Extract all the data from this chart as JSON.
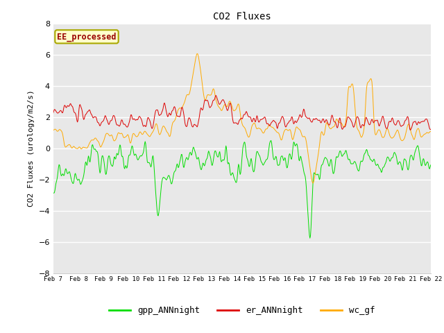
{
  "title": "CO2 Fluxes",
  "ylabel": "CO2 Fluxes (urology/m2/s)",
  "xlabel": "",
  "ylim": [
    -8,
    8
  ],
  "yticks": [
    -8,
    -6,
    -4,
    -2,
    0,
    2,
    4,
    6,
    8
  ],
  "bg_color": "#e8e8e8",
  "annotation": "EE_processed",
  "annotation_color": "#990000",
  "annotation_bg": "#ffffcc",
  "annotation_border": "#aaa800",
  "gpp_color": "#00dd00",
  "er_color": "#dd0000",
  "wc_color": "#ffaa00",
  "legend_labels": [
    "gpp_ANNnight",
    "er_ANNnight",
    "wc_gf"
  ],
  "line_width": 0.7,
  "x_tick_labels": [
    "Feb 7",
    "Feb 8",
    "Feb 9",
    "Feb 10",
    "Feb 11",
    "Feb 12",
    "Feb 13",
    "Feb 14",
    "Feb 15",
    "Feb 16",
    "Feb 17",
    "Feb 18",
    "Feb 19",
    "Feb 20",
    "Feb 21",
    "Feb 22"
  ],
  "font": "monospace"
}
